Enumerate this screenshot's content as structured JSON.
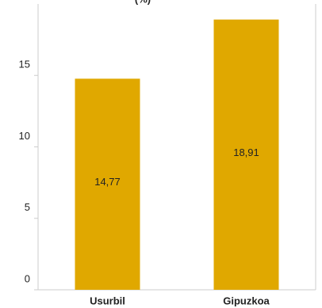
{
  "chart_data": {
    "type": "bar",
    "title_fragment": "(%)",
    "categories": [
      "Usurbil",
      "Gipuzkoa"
    ],
    "values": [
      14.77,
      18.91
    ],
    "value_labels": [
      "14,77",
      "18,91"
    ],
    "yticks": [
      0,
      5,
      10,
      15
    ],
    "ytick_labels": [
      "0",
      "5",
      "10",
      "15"
    ],
    "ylim": [
      0,
      20
    ],
    "grid": false,
    "bar_color": "#e0a800",
    "frame_color": "#cccccc"
  }
}
